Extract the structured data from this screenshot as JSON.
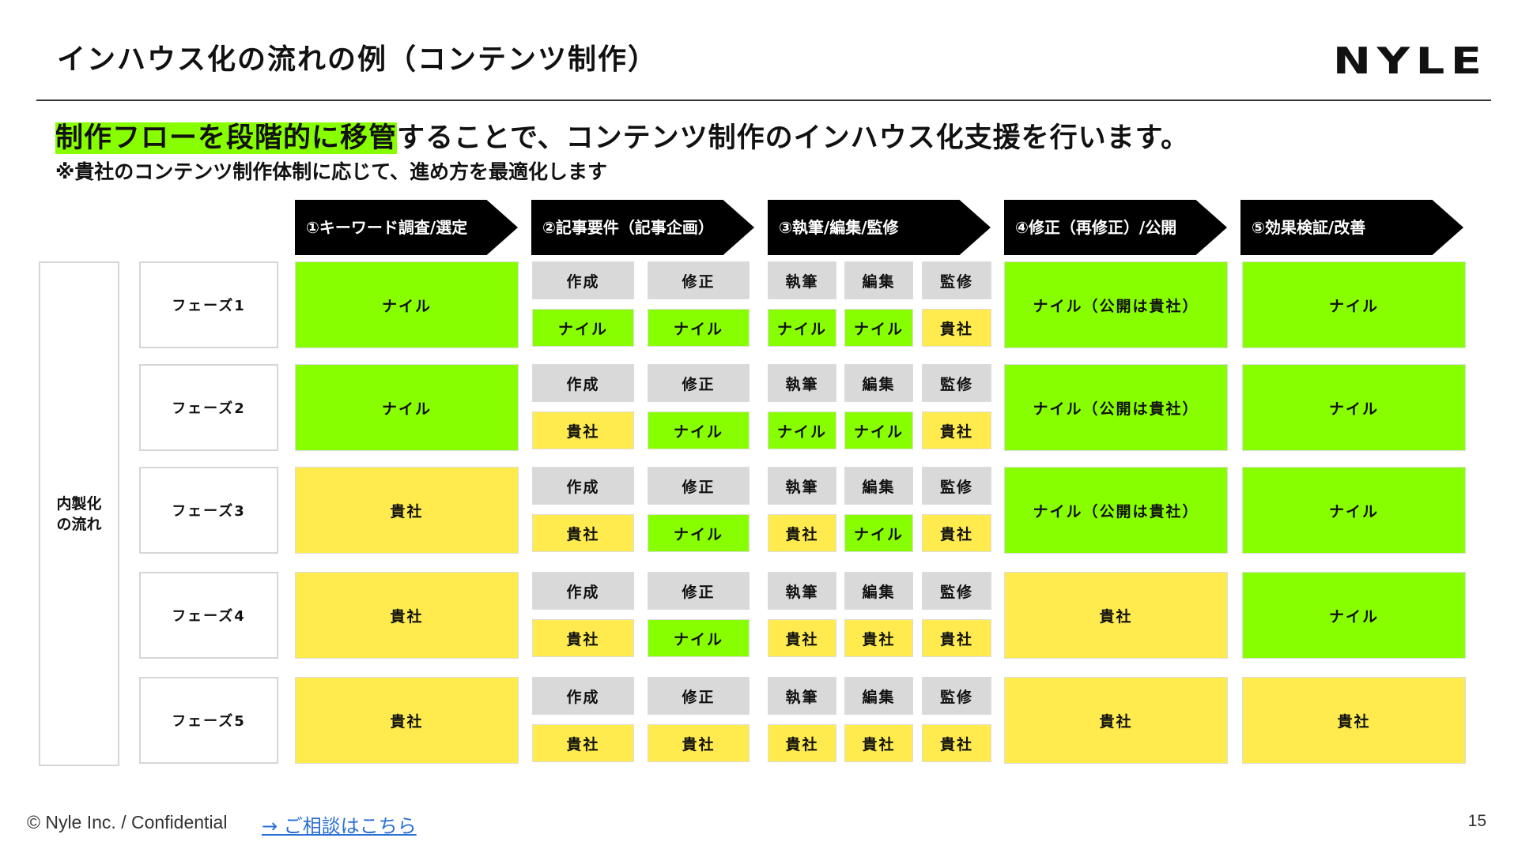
{
  "title": "インハウス化の流れの例（コンテンツ制作）",
  "logo": "NYLE",
  "lead": {
    "highlight": "制作フローを段階的に移管",
    "rest": "することで、コンテンツ制作のインハウス化支援を行います。"
  },
  "note": "※貴社のコンテンツ制作体制に応じて、進め方を最適化します",
  "flow_label": "内製化\nの流れ",
  "steps": [
    {
      "label": "①キーワード調査/選定"
    },
    {
      "label": "②記事要件（記事企画）"
    },
    {
      "label": "③執筆/編集/監修"
    },
    {
      "label": "④修正（再修正）/公開"
    },
    {
      "label": "⑤効果検証/改善"
    }
  ],
  "sub_headers": {
    "create": "作成",
    "revise": "修正",
    "write": "執筆",
    "edit": "編集",
    "supervise": "監修"
  },
  "colors": {
    "nyle": "#88ff00",
    "client": "#ffeb4d",
    "header": "#d9d9d9"
  },
  "phases": [
    {
      "label": "フェーズ1",
      "s1": "ナイル",
      "s2_create": "ナイル",
      "s2_revise": "ナイル",
      "s3_write": "ナイル",
      "s3_edit": "ナイル",
      "s3_supervise": "貴社",
      "s4": "ナイル（公開は貴社）",
      "s5": "ナイル"
    },
    {
      "label": "フェーズ2",
      "s1": "ナイル",
      "s2_create": "貴社",
      "s2_revise": "ナイル",
      "s3_write": "ナイル",
      "s3_edit": "ナイル",
      "s3_supervise": "貴社",
      "s4": "ナイル（公開は貴社）",
      "s5": "ナイル"
    },
    {
      "label": "フェーズ3",
      "s1": "貴社",
      "s2_create": "貴社",
      "s2_revise": "ナイル",
      "s3_write": "貴社",
      "s3_edit": "ナイル",
      "s3_supervise": "貴社",
      "s4": "ナイル（公開は貴社）",
      "s5": "ナイル"
    },
    {
      "label": "フェーズ4",
      "s1": "貴社",
      "s2_create": "貴社",
      "s2_revise": "ナイル",
      "s3_write": "貴社",
      "s3_edit": "貴社",
      "s3_supervise": "貴社",
      "s4": "貴社",
      "s5": "ナイル"
    },
    {
      "label": "フェーズ5",
      "s1": "貴社",
      "s2_create": "貴社",
      "s2_revise": "貴社",
      "s3_write": "貴社",
      "s3_edit": "貴社",
      "s3_supervise": "貴社",
      "s4": "貴社",
      "s5": "貴社"
    }
  ],
  "footer": {
    "copyright": "© Nyle Inc. / Confidential",
    "link": "→ ご相談はこちら",
    "page": "15"
  }
}
